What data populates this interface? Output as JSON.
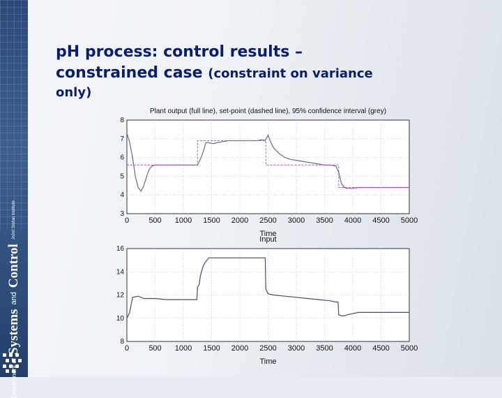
{
  "slide": {
    "title_line1": "pH process: control results –",
    "title_line2a": "constrained case",
    "title_line2b": "(constraint on variance",
    "title_line3": "only)"
  },
  "sidebar": {
    "dept_line1": "Department of",
    "dept_systems": "Systems",
    "dept_and": "and",
    "dept_control": "Control",
    "institute": "Jožef Stefan Institute"
  },
  "colors": {
    "title": "#0a1e6e",
    "sidebar": "#2c4a78",
    "plant": "#6a6a8a",
    "setpoint": "#c050c8",
    "input": "#4a4a6a"
  },
  "chart_data": [
    {
      "type": "line",
      "title": "Plant output (full line), set-point (dashed line), 95% confidence interval (grey)",
      "xlabel": "Time",
      "ylabel": "",
      "xlim": [
        0,
        5000
      ],
      "ylim": [
        3,
        8
      ],
      "xticks": [
        0,
        500,
        1000,
        1500,
        2000,
        2500,
        3000,
        3500,
        4000,
        4500,
        5000
      ],
      "yticks": [
        3,
        4,
        5,
        6,
        7,
        8
      ],
      "grid": true,
      "series": [
        {
          "x": [
            0,
            50,
            100,
            150,
            200,
            250,
            300,
            350,
            400,
            450,
            500,
            600,
            700,
            800,
            900,
            1000,
            1100,
            1200,
            1250,
            1300,
            1350,
            1400,
            1450,
            1500,
            1550,
            1600,
            1700,
            1800,
            1900,
            2000,
            2100,
            2200,
            2300,
            2400,
            2450,
            2500,
            2550,
            2600,
            2700,
            2800,
            2900,
            3000,
            3100,
            3200,
            3300,
            3400,
            3500,
            3600,
            3700,
            3750,
            3800,
            3850,
            3900,
            4000,
            4100,
            4200,
            4300,
            4400,
            4500,
            4600,
            4700,
            4800,
            4900,
            5000
          ],
          "y": [
            7.3,
            6.8,
            6.0,
            5.0,
            4.4,
            4.2,
            4.5,
            5.0,
            5.4,
            5.55,
            5.6,
            5.6,
            5.6,
            5.6,
            5.6,
            5.6,
            5.6,
            5.6,
            5.6,
            5.9,
            6.3,
            6.8,
            6.8,
            6.75,
            6.75,
            6.8,
            6.85,
            6.9,
            6.9,
            6.9,
            6.9,
            6.9,
            6.9,
            6.95,
            6.9,
            7.2,
            6.8,
            6.5,
            6.2,
            6.0,
            5.9,
            5.85,
            5.8,
            5.75,
            5.7,
            5.65,
            5.6,
            5.6,
            5.55,
            5.2,
            4.6,
            4.4,
            4.35,
            4.35,
            4.4,
            4.4,
            4.4,
            4.4,
            4.4,
            4.4,
            4.4,
            4.4,
            4.4,
            4.4
          ]
        },
        {
          "x": [
            0,
            1250,
            1250,
            2460,
            2460,
            3750,
            3750,
            5000
          ],
          "y": [
            5.6,
            5.6,
            6.9,
            6.9,
            5.6,
            5.6,
            4.4,
            4.4
          ]
        }
      ]
    },
    {
      "type": "line",
      "title": "Input",
      "xlabel": "Time",
      "ylabel": "",
      "xlim": [
        0,
        5000
      ],
      "ylim": [
        8,
        16
      ],
      "xticks": [
        0,
        500,
        1000,
        1500,
        2000,
        2500,
        3000,
        3500,
        4000,
        4500,
        5000
      ],
      "yticks": [
        8,
        10,
        12,
        14,
        16
      ],
      "grid": true,
      "series": [
        {
          "x": [
            0,
            50,
            100,
            200,
            300,
            500,
            700,
            900,
            1000,
            1100,
            1200,
            1240,
            1250,
            1280,
            1300,
            1320,
            1350,
            1400,
            1450,
            1500,
            1600,
            1800,
            2000,
            2200,
            2400,
            2450,
            2460,
            2500,
            2600,
            2800,
            3000,
            3200,
            3400,
            3600,
            3700,
            3740,
            3750,
            3800,
            3850,
            3900,
            4000,
            4100,
            4200,
            4500,
            5000
          ],
          "y": [
            10.0,
            10.5,
            11.8,
            11.9,
            11.7,
            11.7,
            11.6,
            11.6,
            11.6,
            11.6,
            11.6,
            11.6,
            12.7,
            12.9,
            13.6,
            14.0,
            14.5,
            14.9,
            15.2,
            15.2,
            15.2,
            15.2,
            15.2,
            15.2,
            15.2,
            15.2,
            12.5,
            12.1,
            12.0,
            11.9,
            11.8,
            11.7,
            11.6,
            11.5,
            11.4,
            11.4,
            10.3,
            10.2,
            10.2,
            10.3,
            10.4,
            10.5,
            10.5,
            10.5,
            10.5
          ]
        }
      ]
    }
  ]
}
